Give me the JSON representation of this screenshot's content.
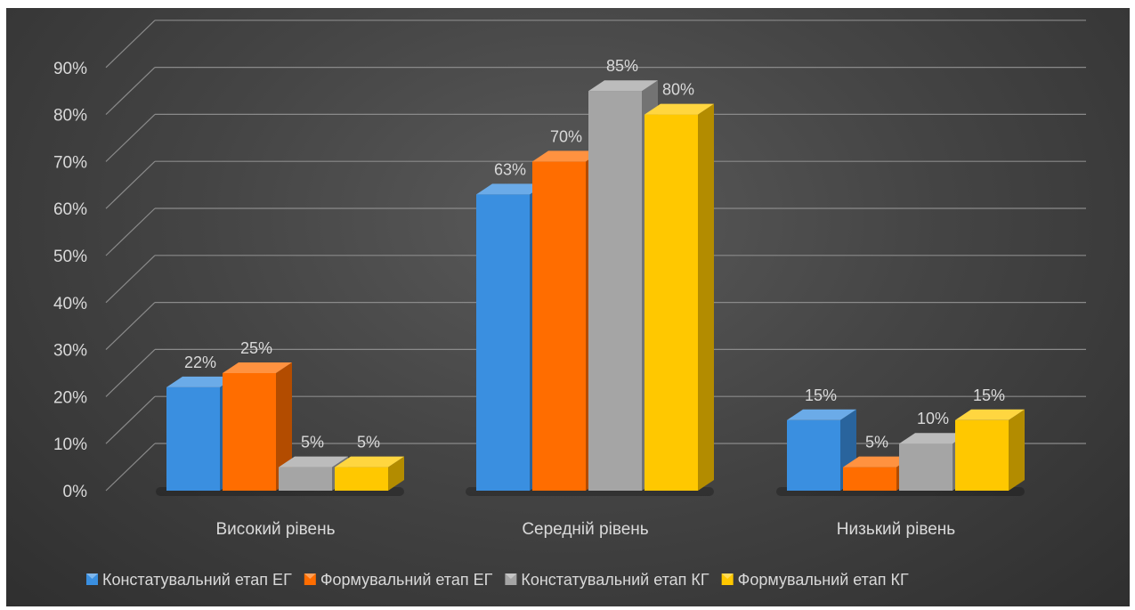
{
  "chart_data": {
    "type": "bar",
    "title": "",
    "xlabel": "",
    "ylabel": "",
    "categories": [
      "Високий рівень",
      "Середній рівень",
      "Низький рівень"
    ],
    "series": [
      {
        "name": "Констатувальний етап ЕГ",
        "values": [
          22,
          63,
          15
        ],
        "color": "#3a8fe0"
      },
      {
        "name": "Формувальний етап ЕГ",
        "values": [
          25,
          70,
          5
        ],
        "color": "#ff6d00"
      },
      {
        "name": "Констатувальний етап КГ",
        "values": [
          5,
          85,
          10
        ],
        "color": "#a5a5a5"
      },
      {
        "name": "Формувальний етап КГ",
        "values": [
          5,
          80,
          15
        ],
        "color": "#ffc800"
      }
    ],
    "y_ticks": [
      "0%",
      "10%",
      "20%",
      "30%",
      "40%",
      "50%",
      "60%",
      "70%",
      "80%",
      "90%"
    ],
    "ylim": [
      0,
      90
    ],
    "value_suffix": "%",
    "grid": true,
    "legend_position": "bottom",
    "style": "3d-clustered-column"
  }
}
